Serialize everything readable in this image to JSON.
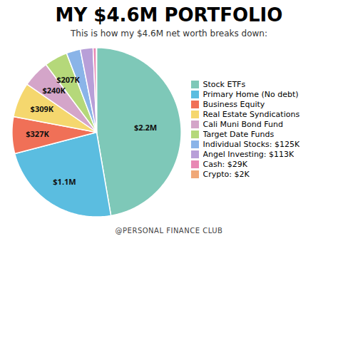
{
  "chart_data": {
    "type": "pie",
    "title": "MY $4.6M PORTFOLIO",
    "subtitle": "This is how my $4.6M net worth breaks down:",
    "caption": "@PERSONAL FINANCE CLUB",
    "categories": [
      "Stock ETFs",
      "Primary Home (No debt)",
      "Business Equity",
      "Real Estate Syndications",
      "Cali Muni Bond Fund",
      "Target Date Funds",
      "Individual Stocks",
      "Angel Investing",
      "Cash",
      "Crypto"
    ],
    "values": [
      2200,
      1100,
      327,
      309,
      240,
      207,
      125,
      113,
      29,
      2
    ],
    "value_labels": [
      "$2.2M",
      "$1.1M",
      "$327K",
      "$309K",
      "$240K",
      "$207K",
      null,
      null,
      null,
      null
    ],
    "colors": [
      "#7ec8b8",
      "#5bbde0",
      "#f07057",
      "#f5d76e",
      "#d4a5c9",
      "#b5d87a",
      "#8ab4e8",
      "#b89fd8",
      "#e888b4",
      "#f0a878"
    ],
    "legend_labels": [
      "Stock ETFs",
      "Primary Home (No debt)",
      "Business Equity",
      "Real Estate Syndications",
      "Cali Muni Bond Fund",
      "Target Date Funds",
      "Individual Stocks: $125K",
      "Angel Investing: $113K",
      "Cash: $29K",
      "Crypto: $2K"
    ],
    "data_labels": true,
    "legend": "right"
  }
}
